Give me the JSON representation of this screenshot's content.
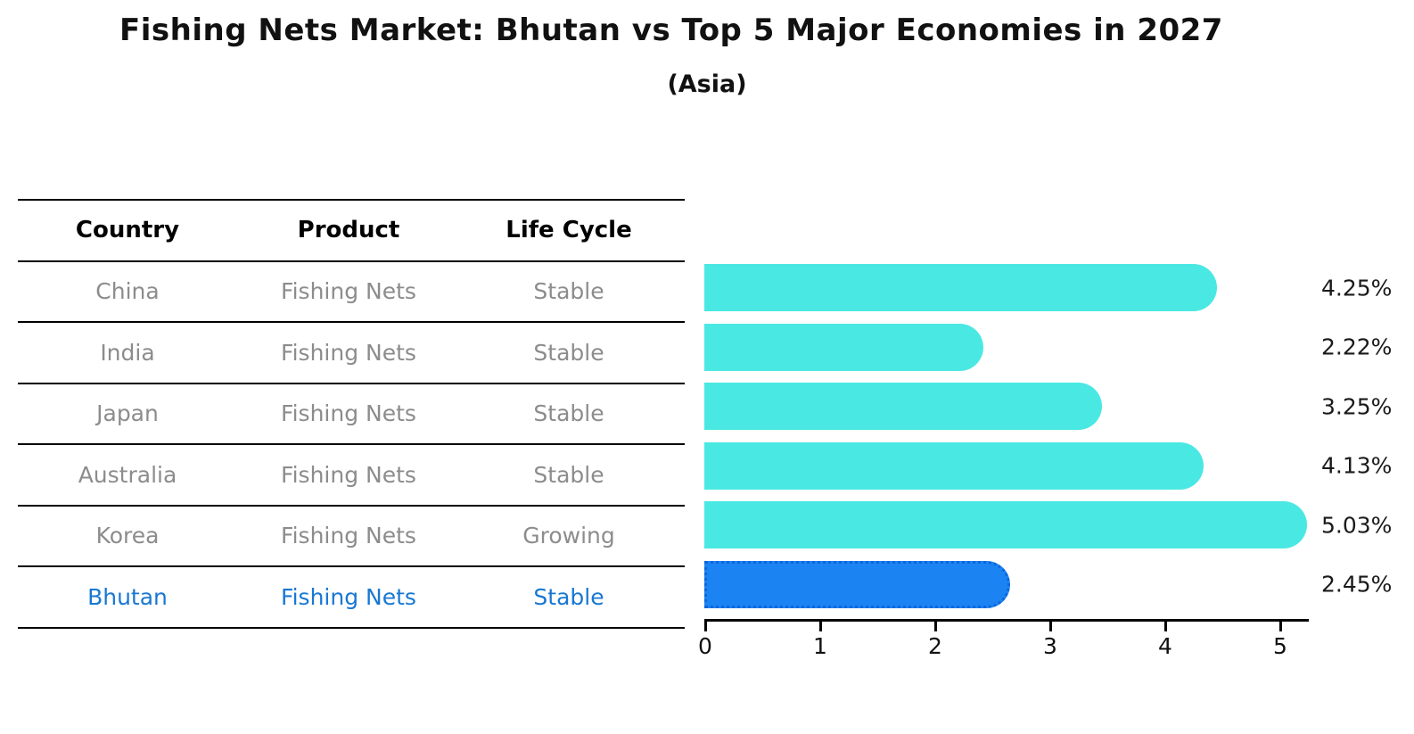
{
  "title": "Fishing Nets Market: Bhutan vs Top 5 Major Economies in 2027",
  "subtitle": "(Asia)",
  "table": {
    "headers": [
      "Country",
      "Product",
      "Life Cycle"
    ],
    "rows": [
      {
        "country": "China",
        "product": "Fishing Nets",
        "life_cycle": "Stable",
        "highlight": false
      },
      {
        "country": "India",
        "product": "Fishing Nets",
        "life_cycle": "Stable",
        "highlight": false
      },
      {
        "country": "Japan",
        "product": "Fishing Nets",
        "life_cycle": "Stable",
        "highlight": false
      },
      {
        "country": "Australia",
        "product": "Fishing Nets",
        "life_cycle": "Stable",
        "highlight": false
      },
      {
        "country": "Korea",
        "product": "Fishing Nets",
        "life_cycle": "Growing",
        "highlight": false
      },
      {
        "country": "Bhutan",
        "product": "Fishing Nets",
        "life_cycle": "Stable",
        "highlight": true
      }
    ]
  },
  "chart_data": {
    "type": "bar",
    "orientation": "horizontal",
    "title": "Fishing Nets Market: Bhutan vs Top 5 Major Economies in 2027",
    "subtitle": "(Asia)",
    "categories": [
      "China",
      "India",
      "Japan",
      "Australia",
      "Korea",
      "Bhutan"
    ],
    "values": [
      4.25,
      2.22,
      3.25,
      4.13,
      5.03,
      2.45
    ],
    "bar_labels": [
      "4.25%",
      "2.22%",
      "3.25%",
      "4.13%",
      "5.03%",
      "2.45%"
    ],
    "x_ticks": [
      0,
      1,
      2,
      3,
      4,
      5
    ],
    "xlim": [
      0,
      5.26
    ],
    "grid": false,
    "legend": "none",
    "highlight_index": 5,
    "colors": {
      "bar": "#4ae8e3",
      "highlight_bar": "#1b84f2",
      "highlight_border": "#0d66dd",
      "row_text": "#8c8c8c",
      "highlight_text": "#1878d2",
      "axis": "#000000"
    }
  }
}
